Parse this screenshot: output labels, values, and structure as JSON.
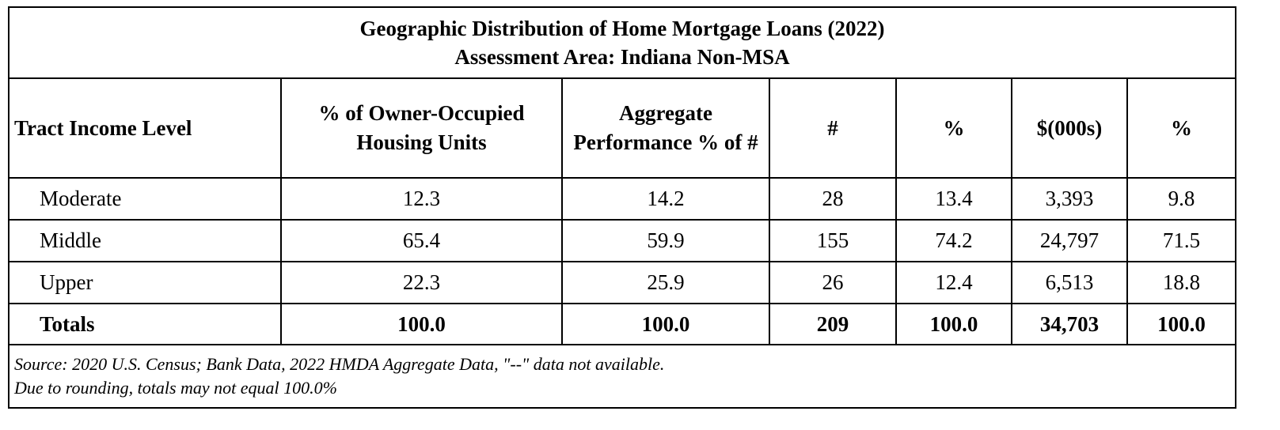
{
  "title": {
    "line1": "Geographic Distribution of Home Mortgage Loans (2022)",
    "line2": "Assessment Area: Indiana Non-MSA"
  },
  "headers": {
    "tract": "Tract Income Level",
    "owner_occupied": "% of  Owner-Occupied Housing Units",
    "aggregate": "Aggregate Performance % of #",
    "count": "#",
    "count_pct": "%",
    "dollars": "$(000s)",
    "dollars_pct": "%"
  },
  "rows": [
    {
      "label": "Moderate",
      "owner_occupied": "12.3",
      "aggregate": "14.2",
      "count": "28",
      "count_pct": "13.4",
      "dollars": "3,393",
      "dollars_pct": "9.8"
    },
    {
      "label": "Middle",
      "owner_occupied": "65.4",
      "aggregate": "59.9",
      "count": "155",
      "count_pct": "74.2",
      "dollars": "24,797",
      "dollars_pct": "71.5"
    },
    {
      "label": "Upper",
      "owner_occupied": "22.3",
      "aggregate": "25.9",
      "count": "26",
      "count_pct": "12.4",
      "dollars": "6,513",
      "dollars_pct": "18.8"
    }
  ],
  "totals": {
    "label": "Totals",
    "owner_occupied": "100.0",
    "aggregate": "100.0",
    "count": "209",
    "count_pct": "100.0",
    "dollars": "34,703",
    "dollars_pct": "100.0"
  },
  "notes": {
    "line1": "Source: 2020 U.S. Census; Bank Data, 2022 HMDA Aggregate Data, \"--\" data not available.",
    "line2": "Due to rounding, totals may not equal 100.0%"
  }
}
